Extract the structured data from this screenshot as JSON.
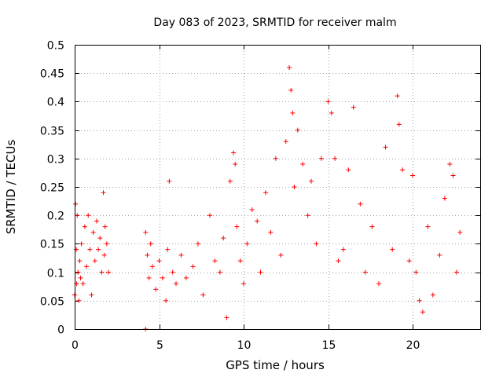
{
  "chart_data": {
    "type": "scatter",
    "title": "Day 083 of 2023, SRMTID for receiver malm",
    "xlabel": "GPS time / hours",
    "ylabel": "SRMTID / TECUs",
    "xlim": [
      0,
      24
    ],
    "ylim": [
      0,
      0.5
    ],
    "x_ticks": [
      0,
      5,
      10,
      15,
      20
    ],
    "x_tick_labels": [
      "0",
      "5",
      "10",
      "15",
      "20"
    ],
    "y_ticks": [
      0,
      0.05,
      0.1,
      0.15,
      0.2,
      0.25,
      0.3,
      0.35,
      0.4,
      0.45,
      0.5
    ],
    "y_tick_labels": [
      "0",
      "0.05",
      "0.1",
      "0.15",
      "0.2",
      "0.25",
      "0.3",
      "0.35",
      "0.4",
      "0.45",
      "0.5"
    ],
    "grid": true,
    "marker": "+",
    "color": "#ff0000",
    "series": [
      {
        "name": "SRMTID",
        "x": [
          0.0,
          0.05,
          0.1,
          0.12,
          0.15,
          0.2,
          0.25,
          0.3,
          0.35,
          0.4,
          0.5,
          0.6,
          0.7,
          0.8,
          0.9,
          1.0,
          1.1,
          1.2,
          1.3,
          1.4,
          1.5,
          1.6,
          1.7,
          1.75,
          1.8,
          1.9,
          2.0,
          4.2,
          4.2,
          4.3,
          4.4,
          4.5,
          4.6,
          4.8,
          5.0,
          5.2,
          5.4,
          5.5,
          5.6,
          5.8,
          6.0,
          6.3,
          6.6,
          7.0,
          7.3,
          7.6,
          8.0,
          8.3,
          8.6,
          8.8,
          9.0,
          9.2,
          9.4,
          9.5,
          9.6,
          9.8,
          10.0,
          10.2,
          10.5,
          10.8,
          11.0,
          11.3,
          11.6,
          11.9,
          12.2,
          12.5,
          12.7,
          12.8,
          12.9,
          13.0,
          13.2,
          13.5,
          13.8,
          14.0,
          14.3,
          14.6,
          15.0,
          15.2,
          15.4,
          15.6,
          15.9,
          16.2,
          16.5,
          16.9,
          17.2,
          17.6,
          18.0,
          18.4,
          18.8,
          19.1,
          19.2,
          19.4,
          19.8,
          20.0,
          20.2,
          20.4,
          20.6,
          20.9,
          21.2,
          21.6,
          21.9,
          22.2,
          22.4,
          22.6,
          22.8
        ],
        "y": [
          0.06,
          0.22,
          0.14,
          0.08,
          0.2,
          0.1,
          0.05,
          0.12,
          0.09,
          0.15,
          0.08,
          0.18,
          0.11,
          0.2,
          0.14,
          0.06,
          0.17,
          0.12,
          0.19,
          0.14,
          0.16,
          0.1,
          0.24,
          0.13,
          0.18,
          0.15,
          0.1,
          0.0,
          0.17,
          0.13,
          0.09,
          0.15,
          0.11,
          0.07,
          0.12,
          0.09,
          0.05,
          0.14,
          0.26,
          0.1,
          0.08,
          0.13,
          0.09,
          0.11,
          0.15,
          0.06,
          0.2,
          0.12,
          0.1,
          0.16,
          0.02,
          0.26,
          0.31,
          0.29,
          0.18,
          0.12,
          0.08,
          0.15,
          0.21,
          0.19,
          0.1,
          0.24,
          0.17,
          0.3,
          0.13,
          0.33,
          0.46,
          0.42,
          0.38,
          0.25,
          0.35,
          0.29,
          0.2,
          0.26,
          0.15,
          0.3,
          0.4,
          0.38,
          0.3,
          0.12,
          0.14,
          0.28,
          0.39,
          0.22,
          0.1,
          0.18,
          0.08,
          0.32,
          0.14,
          0.41,
          0.36,
          0.28,
          0.12,
          0.27,
          0.1,
          0.05,
          0.03,
          0.18,
          0.06,
          0.13,
          0.23,
          0.29,
          0.27,
          0.1,
          0.17
        ]
      }
    ]
  }
}
